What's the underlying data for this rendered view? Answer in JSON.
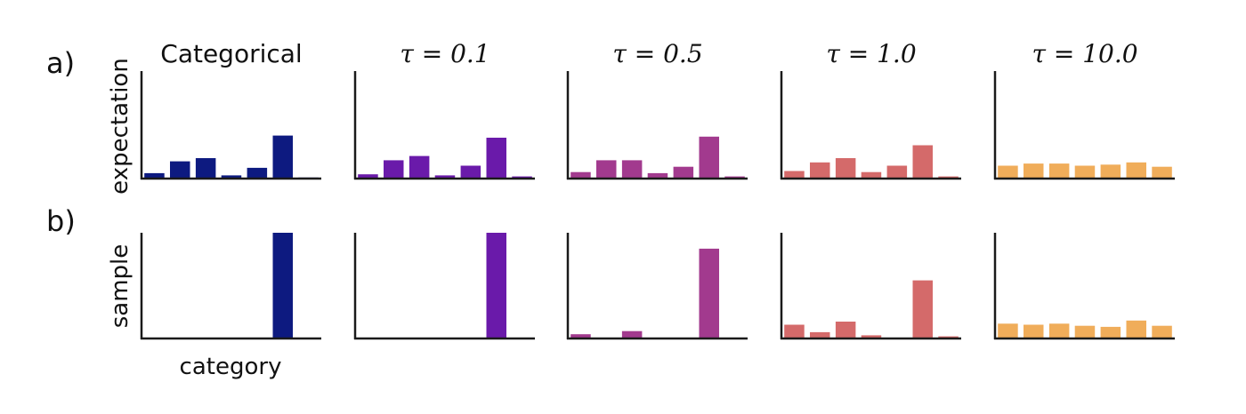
{
  "panel_labels": {
    "a": "a)",
    "b": "b)"
  },
  "ylabels": {
    "row_a": "expectation",
    "row_b": "sample"
  },
  "xlabel": "category",
  "columns": [
    {
      "title": "Categorical",
      "title_style": "sans",
      "color": "#0d1a80"
    },
    {
      "title": "τ = 0.1",
      "title_style": "serif",
      "color": "#6a1aaa"
    },
    {
      "title": "τ = 0.5",
      "title_style": "serif",
      "color": "#a23a8e"
    },
    {
      "title": "τ = 1.0",
      "title_style": "serif",
      "color": "#d46a6a"
    },
    {
      "title": "τ = 10.0",
      "title_style": "serif",
      "color": "#f0ad5a"
    }
  ],
  "chart_data": [
    {
      "type": "bar",
      "row": "expectation",
      "title": "Categorical",
      "ylim": [
        0,
        1
      ],
      "values": [
        0.05,
        0.16,
        0.19,
        0.03,
        0.1,
        0.4,
        0.01
      ]
    },
    {
      "type": "bar",
      "row": "expectation",
      "title": "τ = 0.1",
      "ylim": [
        0,
        1
      ],
      "values": [
        0.04,
        0.17,
        0.21,
        0.03,
        0.12,
        0.38,
        0.02
      ]
    },
    {
      "type": "bar",
      "row": "expectation",
      "title": "τ = 0.5",
      "ylim": [
        0,
        1
      ],
      "values": [
        0.06,
        0.17,
        0.17,
        0.05,
        0.11,
        0.39,
        0.02
      ]
    },
    {
      "type": "bar",
      "row": "expectation",
      "title": "τ = 1.0",
      "ylim": [
        0,
        1
      ],
      "values": [
        0.07,
        0.15,
        0.19,
        0.06,
        0.12,
        0.31,
        0.02
      ]
    },
    {
      "type": "bar",
      "row": "expectation",
      "title": "τ = 10.0",
      "ylim": [
        0,
        1
      ],
      "values": [
        0.12,
        0.14,
        0.14,
        0.12,
        0.13,
        0.15,
        0.11
      ]
    },
    {
      "type": "bar",
      "row": "sample",
      "title": "Categorical",
      "xlabel": "category",
      "ylim": [
        0,
        1
      ],
      "values": [
        0,
        0,
        0,
        0,
        0,
        1.0,
        0
      ]
    },
    {
      "type": "bar",
      "row": "sample",
      "title": "τ = 0.1",
      "ylim": [
        0,
        1
      ],
      "values": [
        0,
        0,
        0,
        0,
        0,
        1.0,
        0
      ]
    },
    {
      "type": "bar",
      "row": "sample",
      "title": "τ = 0.5",
      "ylim": [
        0,
        1
      ],
      "values": [
        0.04,
        0,
        0.07,
        0,
        0,
        0.85,
        0
      ]
    },
    {
      "type": "bar",
      "row": "sample",
      "title": "τ = 1.0",
      "ylim": [
        0,
        1
      ],
      "values": [
        0.13,
        0.06,
        0.16,
        0.03,
        0,
        0.55,
        0.02
      ]
    },
    {
      "type": "bar",
      "row": "sample",
      "title": "τ = 10.0",
      "ylim": [
        0,
        1
      ],
      "values": [
        0.14,
        0.13,
        0.14,
        0.12,
        0.11,
        0.17,
        0.12
      ]
    }
  ]
}
